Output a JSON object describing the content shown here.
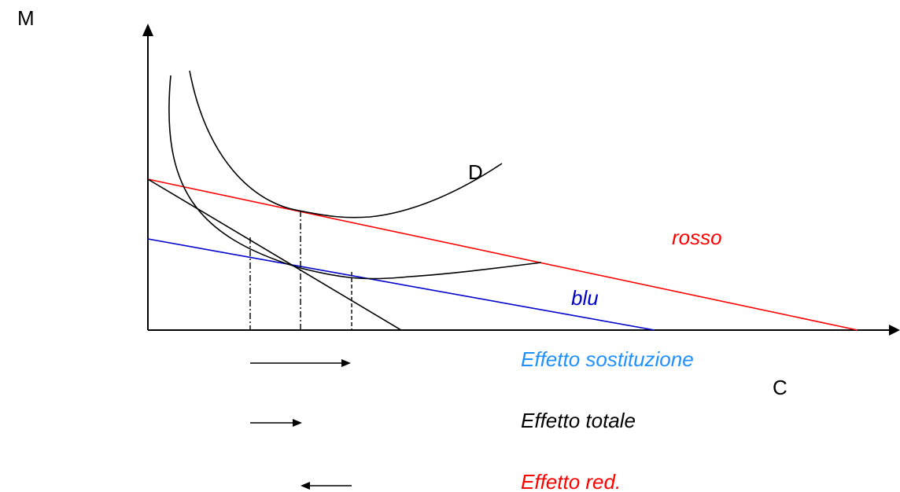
{
  "axes": {
    "y_label": "M",
    "x_label": "C"
  },
  "curve_labels": {
    "indifference_high": "D",
    "budget_red": "rosso",
    "budget_blue": "blu"
  },
  "effects": {
    "substitution": "Effetto sostituzione",
    "total": "Effetto totale",
    "income": "Effetto red."
  },
  "colors": {
    "axis": "#000000",
    "budget_red": "#ff0000",
    "budget_blue": "#0000cc",
    "substitution_text": "#1e90ff",
    "total_text": "#000000",
    "income_text": "#ff0000"
  }
}
